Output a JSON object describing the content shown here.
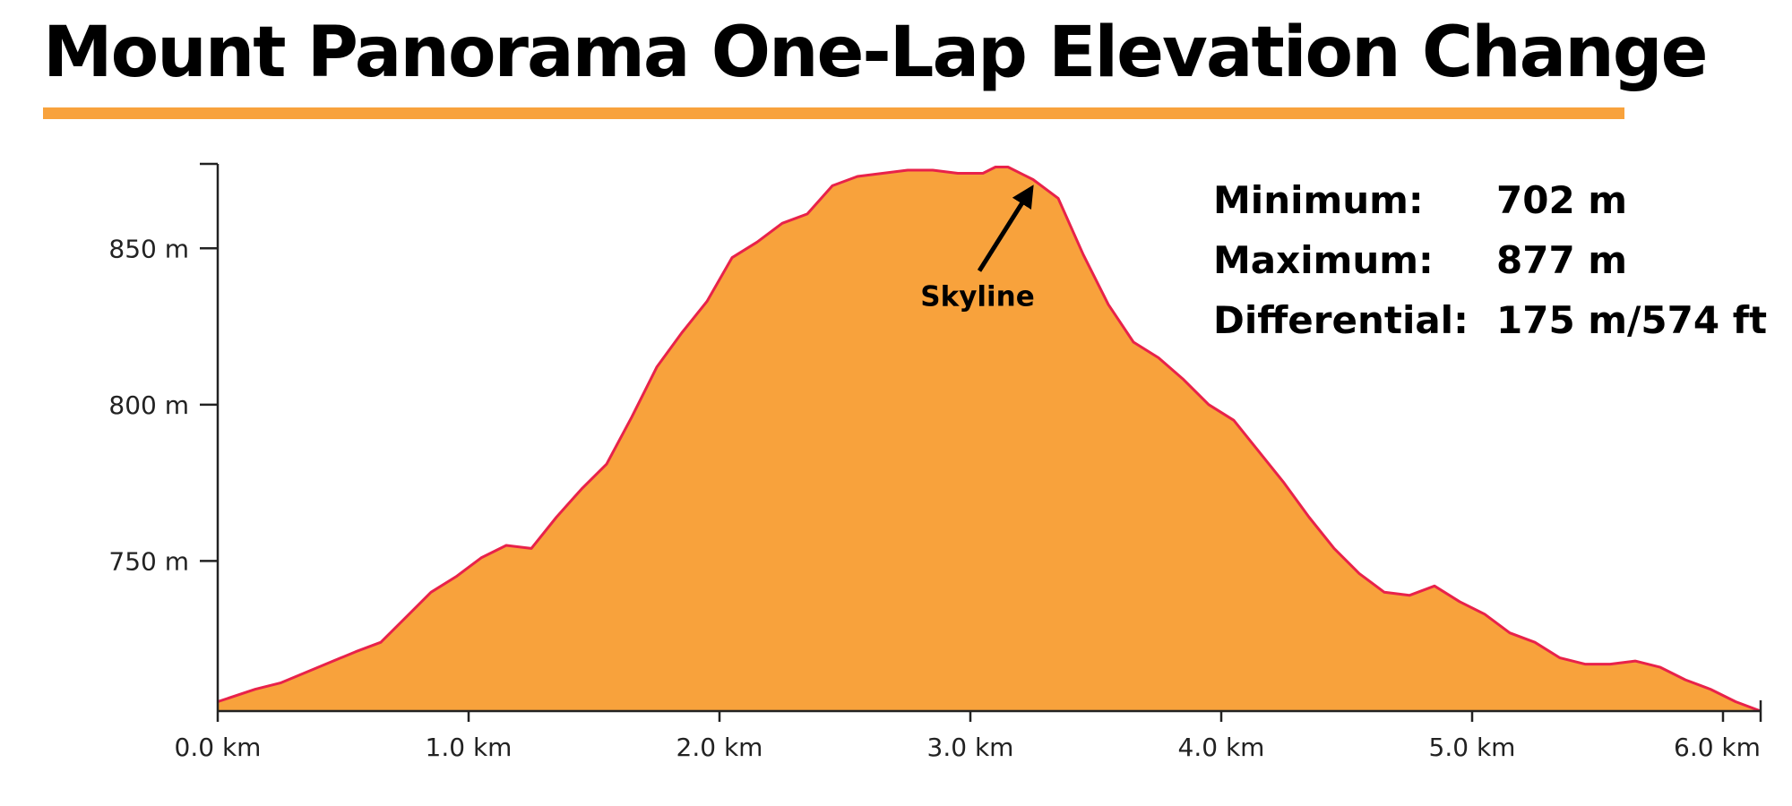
{
  "chart_data": {
    "type": "area",
    "title": "Mount Panorama One-Lap Elevation Change",
    "xlabel": "",
    "ylabel": "",
    "x_unit": "km",
    "y_unit": "m",
    "xlim": [
      0,
      6.15
    ],
    "ylim": [
      702,
      877
    ],
    "x_ticks": [
      0,
      1,
      2,
      3,
      4,
      5,
      6
    ],
    "x_tick_labels": [
      "0.0 km",
      "1.0 km",
      "2.0 km",
      "3.0 km",
      "4.0 km",
      "5.0 km",
      "6.0 km"
    ],
    "y_ticks": [
      750,
      800,
      850
    ],
    "y_tick_labels": [
      "750 m",
      "800 m",
      "850 m"
    ],
    "grid": false,
    "series": [
      {
        "name": "Elevation",
        "x": [
          0,
          0.15,
          0.25,
          0.4,
          0.55,
          0.65,
          0.75,
          0.85,
          0.95,
          1.05,
          1.15,
          1.25,
          1.35,
          1.45,
          1.55,
          1.65,
          1.75,
          1.85,
          1.95,
          2.05,
          2.15,
          2.25,
          2.35,
          2.45,
          2.55,
          2.65,
          2.75,
          2.85,
          2.95,
          3.05,
          3.1,
          3.15,
          3.25,
          3.35,
          3.45,
          3.55,
          3.65,
          3.75,
          3.85,
          3.95,
          4.05,
          4.15,
          4.25,
          4.35,
          4.45,
          4.55,
          4.65,
          4.75,
          4.85,
          4.95,
          5.05,
          5.15,
          5.25,
          5.35,
          5.45,
          5.55,
          5.65,
          5.75,
          5.85,
          5.95,
          6.05,
          6.15
        ],
        "y": [
          705,
          709,
          711,
          716,
          721,
          724,
          732,
          740,
          745,
          751,
          755,
          754,
          764,
          773,
          781,
          796,
          812,
          823,
          833,
          847,
          852,
          858,
          861,
          870,
          873,
          874,
          875,
          875,
          874,
          874,
          876,
          876,
          872,
          866,
          848,
          832,
          820,
          815,
          808,
          800,
          795,
          785,
          775,
          764,
          754,
          746,
          740,
          739,
          742,
          737,
          733,
          727,
          724,
          719,
          717,
          717,
          718,
          716,
          712,
          709,
          705,
          702
        ]
      }
    ],
    "annotations": [
      {
        "label": "Skyline",
        "x": 3.25,
        "y": 872
      }
    ],
    "stats": [
      {
        "label": "Minimum:",
        "value": "702 m"
      },
      {
        "label": "Maximum:",
        "value": "877 m"
      },
      {
        "label": "Differential:",
        "value": "175 m/574 ft"
      }
    ],
    "colors": {
      "fill": "#f8a23c",
      "line": "#e8224a",
      "axis": "#222222",
      "accent": "#f8a23c",
      "arrow": "#000000"
    }
  }
}
